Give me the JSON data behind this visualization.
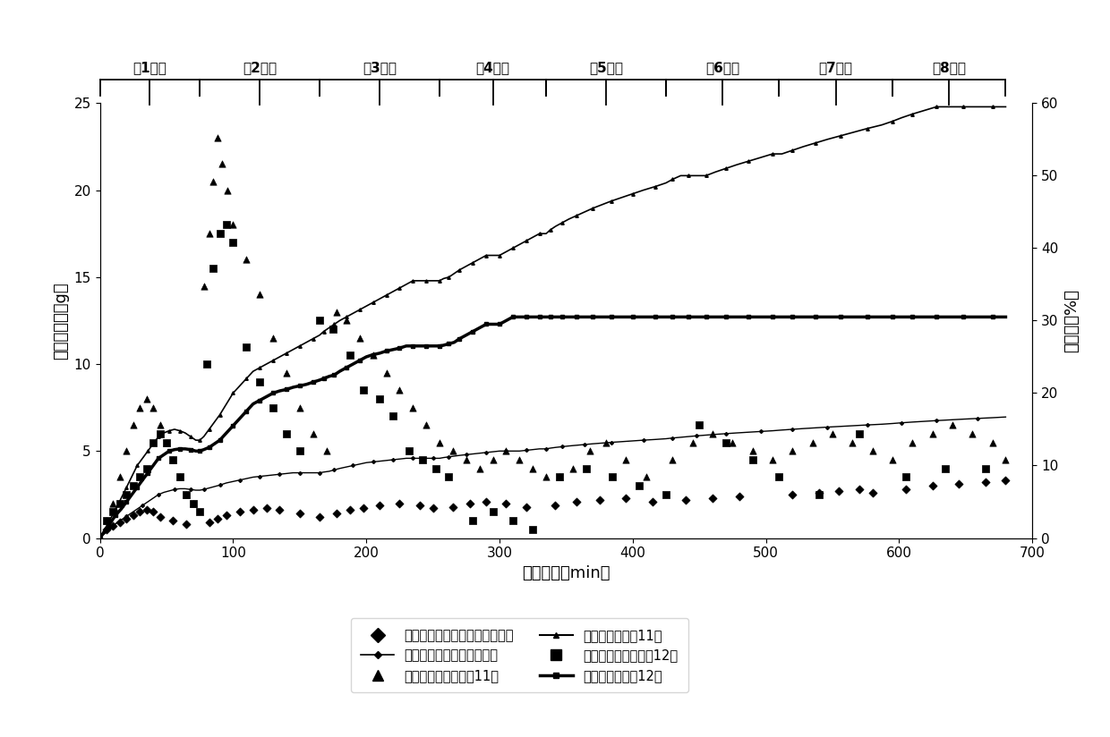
{
  "xlabel": "生产时间（min）",
  "ylabel_left": "周期产油量（g）",
  "ylabel_right": "采收率（%）",
  "xlim": [
    0,
    700
  ],
  "ylim_left": [
    0,
    25
  ],
  "ylim_right": [
    0,
    60
  ],
  "xticks": [
    0,
    100,
    200,
    300,
    400,
    500,
    600,
    700
  ],
  "yticks_left": [
    0,
    5,
    10,
    15,
    20,
    25
  ],
  "yticks_right": [
    0,
    10,
    20,
    30,
    40,
    50,
    60
  ],
  "periods": [
    {
      "label": "第1周期",
      "x_start": 0,
      "x_end": 75
    },
    {
      "label": "第2周期",
      "x_start": 75,
      "x_end": 165
    },
    {
      "label": "第3周期",
      "x_start": 165,
      "x_end": 255
    },
    {
      "label": "第4周期",
      "x_start": 255,
      "x_end": 335
    },
    {
      "label": "第5周期",
      "x_start": 335,
      "x_end": 425
    },
    {
      "label": "第6周期",
      "x_start": 425,
      "x_end": 510
    },
    {
      "label": "第7周期",
      "x_start": 510,
      "x_end": 595
    },
    {
      "label": "第8周期",
      "x_start": 595,
      "x_end": 680
    }
  ],
  "scatter_diamond_x": [
    5,
    10,
    15,
    20,
    25,
    30,
    35,
    40,
    45,
    55,
    65,
    82,
    88,
    95,
    105,
    115,
    125,
    135,
    150,
    165,
    178,
    188,
    198,
    210,
    225,
    240,
    250,
    265,
    278,
    290,
    305,
    320,
    342,
    358,
    375,
    395,
    415,
    440,
    460,
    480,
    520,
    540,
    555,
    570,
    580,
    605,
    625,
    645,
    665,
    680
  ],
  "scatter_diamond_y": [
    0.5,
    0.7,
    0.9,
    1.1,
    1.3,
    1.5,
    1.6,
    1.5,
    1.2,
    1.0,
    0.8,
    0.9,
    1.1,
    1.3,
    1.5,
    1.6,
    1.7,
    1.6,
    1.4,
    1.2,
    1.4,
    1.6,
    1.7,
    1.9,
    2.0,
    1.9,
    1.7,
    1.8,
    2.0,
    2.1,
    2.0,
    1.8,
    1.9,
    2.1,
    2.2,
    2.3,
    2.1,
    2.2,
    2.3,
    2.4,
    2.5,
    2.6,
    2.7,
    2.8,
    2.6,
    2.8,
    3.0,
    3.1,
    3.2,
    3.3
  ],
  "scatter_triangle_x": [
    5,
    10,
    15,
    20,
    25,
    30,
    35,
    40,
    45,
    50,
    55,
    60,
    65,
    70,
    78,
    82,
    85,
    88,
    92,
    96,
    100,
    110,
    120,
    130,
    140,
    150,
    160,
    170,
    178,
    185,
    195,
    205,
    215,
    225,
    235,
    245,
    255,
    265,
    275,
    285,
    295,
    305,
    315,
    325,
    335,
    345,
    355,
    368,
    380,
    395,
    410,
    430,
    445,
    460,
    475,
    490,
    505,
    520,
    535,
    550,
    565,
    580,
    595,
    610,
    625,
    640,
    655,
    670,
    680
  ],
  "scatter_triangle_y": [
    1.0,
    2.0,
    3.5,
    5.0,
    6.5,
    7.5,
    8.0,
    7.5,
    6.5,
    5.5,
    4.5,
    3.5,
    2.5,
    2.0,
    14.5,
    17.5,
    20.5,
    23.0,
    21.5,
    20.0,
    18.0,
    16.0,
    14.0,
    11.5,
    9.5,
    7.5,
    6.0,
    5.0,
    13.0,
    12.5,
    11.5,
    10.5,
    9.5,
    8.5,
    7.5,
    6.5,
    5.5,
    5.0,
    4.5,
    4.0,
    4.5,
    5.0,
    4.5,
    4.0,
    3.5,
    3.5,
    4.0,
    5.0,
    5.5,
    4.5,
    3.5,
    4.5,
    5.5,
    6.0,
    5.5,
    5.0,
    4.5,
    5.0,
    5.5,
    6.0,
    5.5,
    5.0,
    4.5,
    5.5,
    6.0,
    6.5,
    6.0,
    5.5,
    4.5
  ],
  "scatter_square_x": [
    5,
    10,
    15,
    20,
    25,
    30,
    35,
    40,
    45,
    50,
    55,
    60,
    65,
    70,
    75,
    80,
    85,
    90,
    95,
    100,
    110,
    120,
    130,
    140,
    150,
    165,
    175,
    188,
    198,
    210,
    220,
    232,
    242,
    252,
    262,
    280,
    295,
    310,
    325,
    345,
    365,
    385,
    405,
    425,
    450,
    470,
    490,
    510,
    540,
    570,
    605,
    635,
    665
  ],
  "scatter_square_y": [
    1.0,
    1.5,
    2.0,
    2.5,
    3.0,
    3.5,
    4.0,
    5.5,
    6.0,
    5.5,
    4.5,
    3.5,
    2.5,
    2.0,
    1.5,
    10.0,
    15.5,
    17.5,
    18.0,
    17.0,
    11.0,
    9.0,
    7.5,
    6.0,
    5.0,
    12.5,
    12.0,
    10.5,
    8.5,
    8.0,
    7.0,
    5.0,
    4.5,
    4.0,
    3.5,
    1.0,
    1.5,
    1.0,
    0.5,
    3.5,
    4.0,
    3.5,
    3.0,
    2.5,
    6.5,
    5.5,
    4.5,
    3.5,
    2.5,
    6.0,
    3.5,
    4.0,
    4.0
  ],
  "line_diamond_x": [
    0,
    3,
    6,
    9,
    12,
    16,
    20,
    24,
    28,
    32,
    36,
    40,
    44,
    48,
    52,
    56,
    60,
    64,
    68,
    72,
    75,
    78,
    82,
    86,
    90,
    95,
    100,
    105,
    110,
    115,
    120,
    125,
    130,
    135,
    140,
    145,
    150,
    155,
    160,
    165,
    168,
    172,
    176,
    180,
    185,
    190,
    195,
    200,
    205,
    210,
    215,
    220,
    225,
    230,
    235,
    240,
    245,
    250,
    255,
    258,
    262,
    266,
    270,
    275,
    280,
    285,
    290,
    295,
    300,
    305,
    310,
    315,
    320,
    325,
    330,
    335,
    338,
    342,
    347,
    352,
    358,
    364,
    370,
    377,
    384,
    392,
    400,
    408,
    417,
    425,
    430,
    436,
    442,
    448,
    455,
    462,
    470,
    478,
    487,
    496,
    505,
    512,
    520,
    528,
    537,
    546,
    556,
    566,
    576,
    587,
    595,
    602,
    610,
    619,
    628,
    638,
    648,
    659,
    670,
    680
  ],
  "line_diamond_y": [
    0,
    0.5,
    1.0,
    1.5,
    2.0,
    2.5,
    3.0,
    3.5,
    4.0,
    4.5,
    5.0,
    5.5,
    6.0,
    6.3,
    6.5,
    6.7,
    6.8,
    6.8,
    6.7,
    6.6,
    6.6,
    6.7,
    6.9,
    7.1,
    7.3,
    7.6,
    7.8,
    8.0,
    8.2,
    8.4,
    8.5,
    8.6,
    8.7,
    8.8,
    8.9,
    9.0,
    9.0,
    9.0,
    9.0,
    9.0,
    9.1,
    9.2,
    9.4,
    9.6,
    9.8,
    10.0,
    10.2,
    10.4,
    10.5,
    10.6,
    10.7,
    10.8,
    10.9,
    11.0,
    11.0,
    11.0,
    11.0,
    11.0,
    11.0,
    11.1,
    11.2,
    11.3,
    11.4,
    11.5,
    11.6,
    11.7,
    11.8,
    11.9,
    12.0,
    12.0,
    12.0,
    12.0,
    12.1,
    12.2,
    12.3,
    12.3,
    12.4,
    12.5,
    12.6,
    12.7,
    12.8,
    12.9,
    13.0,
    13.1,
    13.2,
    13.3,
    13.4,
    13.5,
    13.6,
    13.7,
    13.8,
    13.9,
    14.0,
    14.1,
    14.2,
    14.3,
    14.4,
    14.5,
    14.6,
    14.7,
    14.8,
    14.9,
    15.0,
    15.1,
    15.2,
    15.3,
    15.4,
    15.5,
    15.6,
    15.7,
    15.8,
    15.9,
    16.0,
    16.1,
    16.2,
    16.3,
    16.4,
    16.5,
    16.6,
    16.7
  ],
  "line_triangle_x": [
    0,
    3,
    6,
    9,
    12,
    16,
    20,
    24,
    28,
    32,
    36,
    40,
    44,
    48,
    52,
    56,
    60,
    64,
    68,
    72,
    75,
    78,
    82,
    86,
    90,
    95,
    100,
    105,
    110,
    115,
    120,
    125,
    130,
    135,
    140,
    145,
    150,
    155,
    160,
    165,
    168,
    172,
    176,
    180,
    185,
    190,
    195,
    200,
    205,
    210,
    215,
    220,
    225,
    230,
    235,
    240,
    245,
    250,
    255,
    258,
    262,
    266,
    270,
    275,
    280,
    285,
    290,
    295,
    300,
    305,
    310,
    315,
    320,
    325,
    330,
    335,
    338,
    342,
    347,
    352,
    358,
    364,
    370,
    377,
    384,
    392,
    400,
    408,
    417,
    425,
    430,
    436,
    442,
    448,
    455,
    462,
    470,
    478,
    487,
    496,
    505,
    512,
    520,
    528,
    537,
    546,
    556,
    566,
    576,
    587,
    595,
    602,
    610,
    619,
    628,
    638,
    648,
    659,
    670,
    680
  ],
  "line_triangle_y": [
    0,
    1,
    2,
    3,
    4,
    5.5,
    7,
    8.5,
    10,
    11,
    12,
    13,
    14,
    14.5,
    14.8,
    15,
    14.8,
    14.5,
    14,
    13.5,
    13.5,
    14,
    15,
    16,
    17,
    18.5,
    20,
    21,
    22,
    23,
    23.5,
    24,
    24.5,
    25,
    25.5,
    26,
    26.5,
    27,
    27.5,
    28,
    28.5,
    29,
    29.5,
    30,
    30.5,
    31,
    31.5,
    32,
    32.5,
    33,
    33.5,
    34,
    34.5,
    35,
    35.5,
    35.5,
    35.5,
    35.5,
    35.5,
    35.8,
    36,
    36.5,
    37,
    37.5,
    38,
    38.5,
    39,
    39,
    39,
    39.5,
    40,
    40.5,
    41,
    41.5,
    42,
    42,
    42.5,
    43,
    43.5,
    44,
    44.5,
    45,
    45.5,
    46,
    46.5,
    47,
    47.5,
    48,
    48.5,
    49,
    49.5,
    50,
    50,
    50,
    50,
    50.5,
    51,
    51.5,
    52,
    52.5,
    53,
    53,
    53.5,
    54,
    54.5,
    55,
    55.5,
    56,
    56.5,
    57,
    57.5,
    58,
    58.5,
    59,
    59.5,
    59.5,
    59.5,
    59.5,
    59.5,
    59.5
  ],
  "line_square_x": [
    0,
    3,
    6,
    9,
    12,
    16,
    20,
    24,
    28,
    32,
    36,
    40,
    44,
    48,
    52,
    56,
    60,
    64,
    68,
    72,
    75,
    78,
    82,
    86,
    90,
    95,
    100,
    105,
    110,
    115,
    120,
    125,
    130,
    135,
    140,
    145,
    150,
    155,
    160,
    165,
    168,
    172,
    176,
    180,
    185,
    190,
    195,
    200,
    205,
    210,
    215,
    220,
    225,
    230,
    235,
    240,
    245,
    250,
    255,
    258,
    262,
    266,
    270,
    275,
    280,
    285,
    290,
    295,
    300,
    305,
    310,
    315,
    320,
    325,
    330,
    335,
    338,
    342,
    347,
    352,
    358,
    364,
    370,
    377,
    384,
    392,
    400,
    408,
    417,
    425,
    430,
    436,
    442,
    448,
    455,
    462,
    470,
    478,
    487,
    496,
    505,
    512,
    520,
    528,
    537,
    546,
    556,
    566,
    576,
    587,
    595,
    602,
    610,
    619,
    628,
    638,
    648,
    659,
    670,
    680
  ],
  "line_square_y": [
    0,
    0.8,
    1.6,
    2.4,
    3.2,
    4,
    5,
    6,
    7,
    8,
    9,
    10,
    11,
    11.5,
    12,
    12.2,
    12.3,
    12.3,
    12.2,
    12.0,
    12.0,
    12.2,
    12.5,
    13,
    13.5,
    14.5,
    15.5,
    16.5,
    17.5,
    18.5,
    19,
    19.5,
    20,
    20.3,
    20.5,
    20.8,
    21,
    21.2,
    21.5,
    21.8,
    22,
    22.3,
    22.5,
    23,
    23.5,
    24,
    24.5,
    25,
    25.3,
    25.5,
    25.8,
    26,
    26.2,
    26.5,
    26.5,
    26.5,
    26.5,
    26.5,
    26.5,
    26.6,
    26.8,
    27,
    27.5,
    28,
    28.5,
    29,
    29.5,
    29.5,
    29.5,
    30,
    30.5,
    30.5,
    30.5,
    30.5,
    30.5,
    30.5,
    30.5,
    30.5,
    30.5,
    30.5,
    30.5,
    30.5,
    30.5,
    30.5,
    30.5,
    30.5,
    30.5,
    30.5,
    30.5,
    30.5,
    30.5,
    30.5,
    30.5,
    30.5,
    30.5,
    30.5,
    30.5,
    30.5,
    30.5,
    30.5,
    30.5,
    30.5,
    30.5,
    30.5,
    30.5,
    30.5,
    30.5,
    30.5,
    30.5,
    30.5,
    30.5,
    30.5,
    30.5,
    30.5,
    30.5,
    30.5,
    30.5,
    30.5,
    30.5,
    30.5
  ]
}
